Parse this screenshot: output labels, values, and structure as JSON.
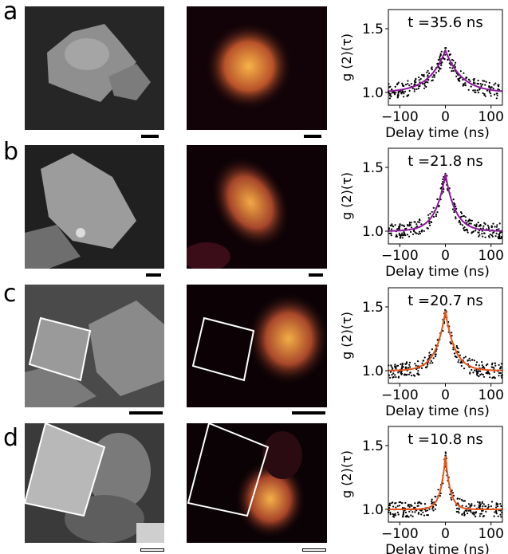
{
  "figure": {
    "rows": [
      {
        "label": "a",
        "plot_title": "t =35.6 ns",
        "fit_color": "#8b1a9b"
      },
      {
        "label": "b",
        "plot_title": "t =21.8 ns",
        "fit_color": "#8b1a9b"
      },
      {
        "label": "c",
        "plot_title": "t =20.7 ns",
        "fit_color": "#e8541a"
      },
      {
        "label": "d",
        "plot_title": "t =10.8 ns",
        "fit_color": "#e8541a"
      }
    ],
    "ylabel": "g (2)(τ)",
    "xlabel": "Delay time (ns)",
    "xticks": [
      "−100",
      "0",
      "100"
    ],
    "yticks": [
      "1.0",
      "1.5"
    ]
  },
  "chart_data": [
    {
      "type": "scatter",
      "title": "t =35.6 ns",
      "xlabel": "Delay time (ns)",
      "ylabel": "g (2)(τ)",
      "xlim": [
        -125,
        125
      ],
      "ylim": [
        0.9,
        1.65
      ],
      "peak_x": 0,
      "baseline": 1.0,
      "peak": 1.33,
      "tau_ns": 35.6,
      "series": [
        {
          "values_desc": "points"
        },
        {
          "values_desc": "fit"
        }
      ]
    },
    {
      "type": "scatter",
      "title": "t =21.8 ns",
      "xlabel": "Delay time (ns)",
      "ylabel": "g (2)(τ)",
      "xlim": [
        -125,
        125
      ],
      "ylim": [
        0.9,
        1.65
      ],
      "peak_x": 0,
      "baseline": 1.0,
      "peak": 1.45,
      "tau_ns": 21.8
    },
    {
      "type": "scatter",
      "title": "t =20.7 ns",
      "xlabel": "Delay time (ns)",
      "ylabel": "g (2)(τ)",
      "xlim": [
        -125,
        125
      ],
      "ylim": [
        0.9,
        1.65
      ],
      "peak_x": 0,
      "baseline": 1.0,
      "peak": 1.47,
      "tau_ns": 20.7
    },
    {
      "type": "scatter",
      "title": "t =10.8 ns",
      "xlabel": "Delay time (ns)",
      "ylabel": "g (2)(τ)",
      "xlim": [
        -125,
        125
      ],
      "ylim": [
        0.9,
        1.65
      ],
      "peak_x": 0,
      "baseline": 1.0,
      "peak": 1.42,
      "tau_ns": 10.8
    }
  ]
}
